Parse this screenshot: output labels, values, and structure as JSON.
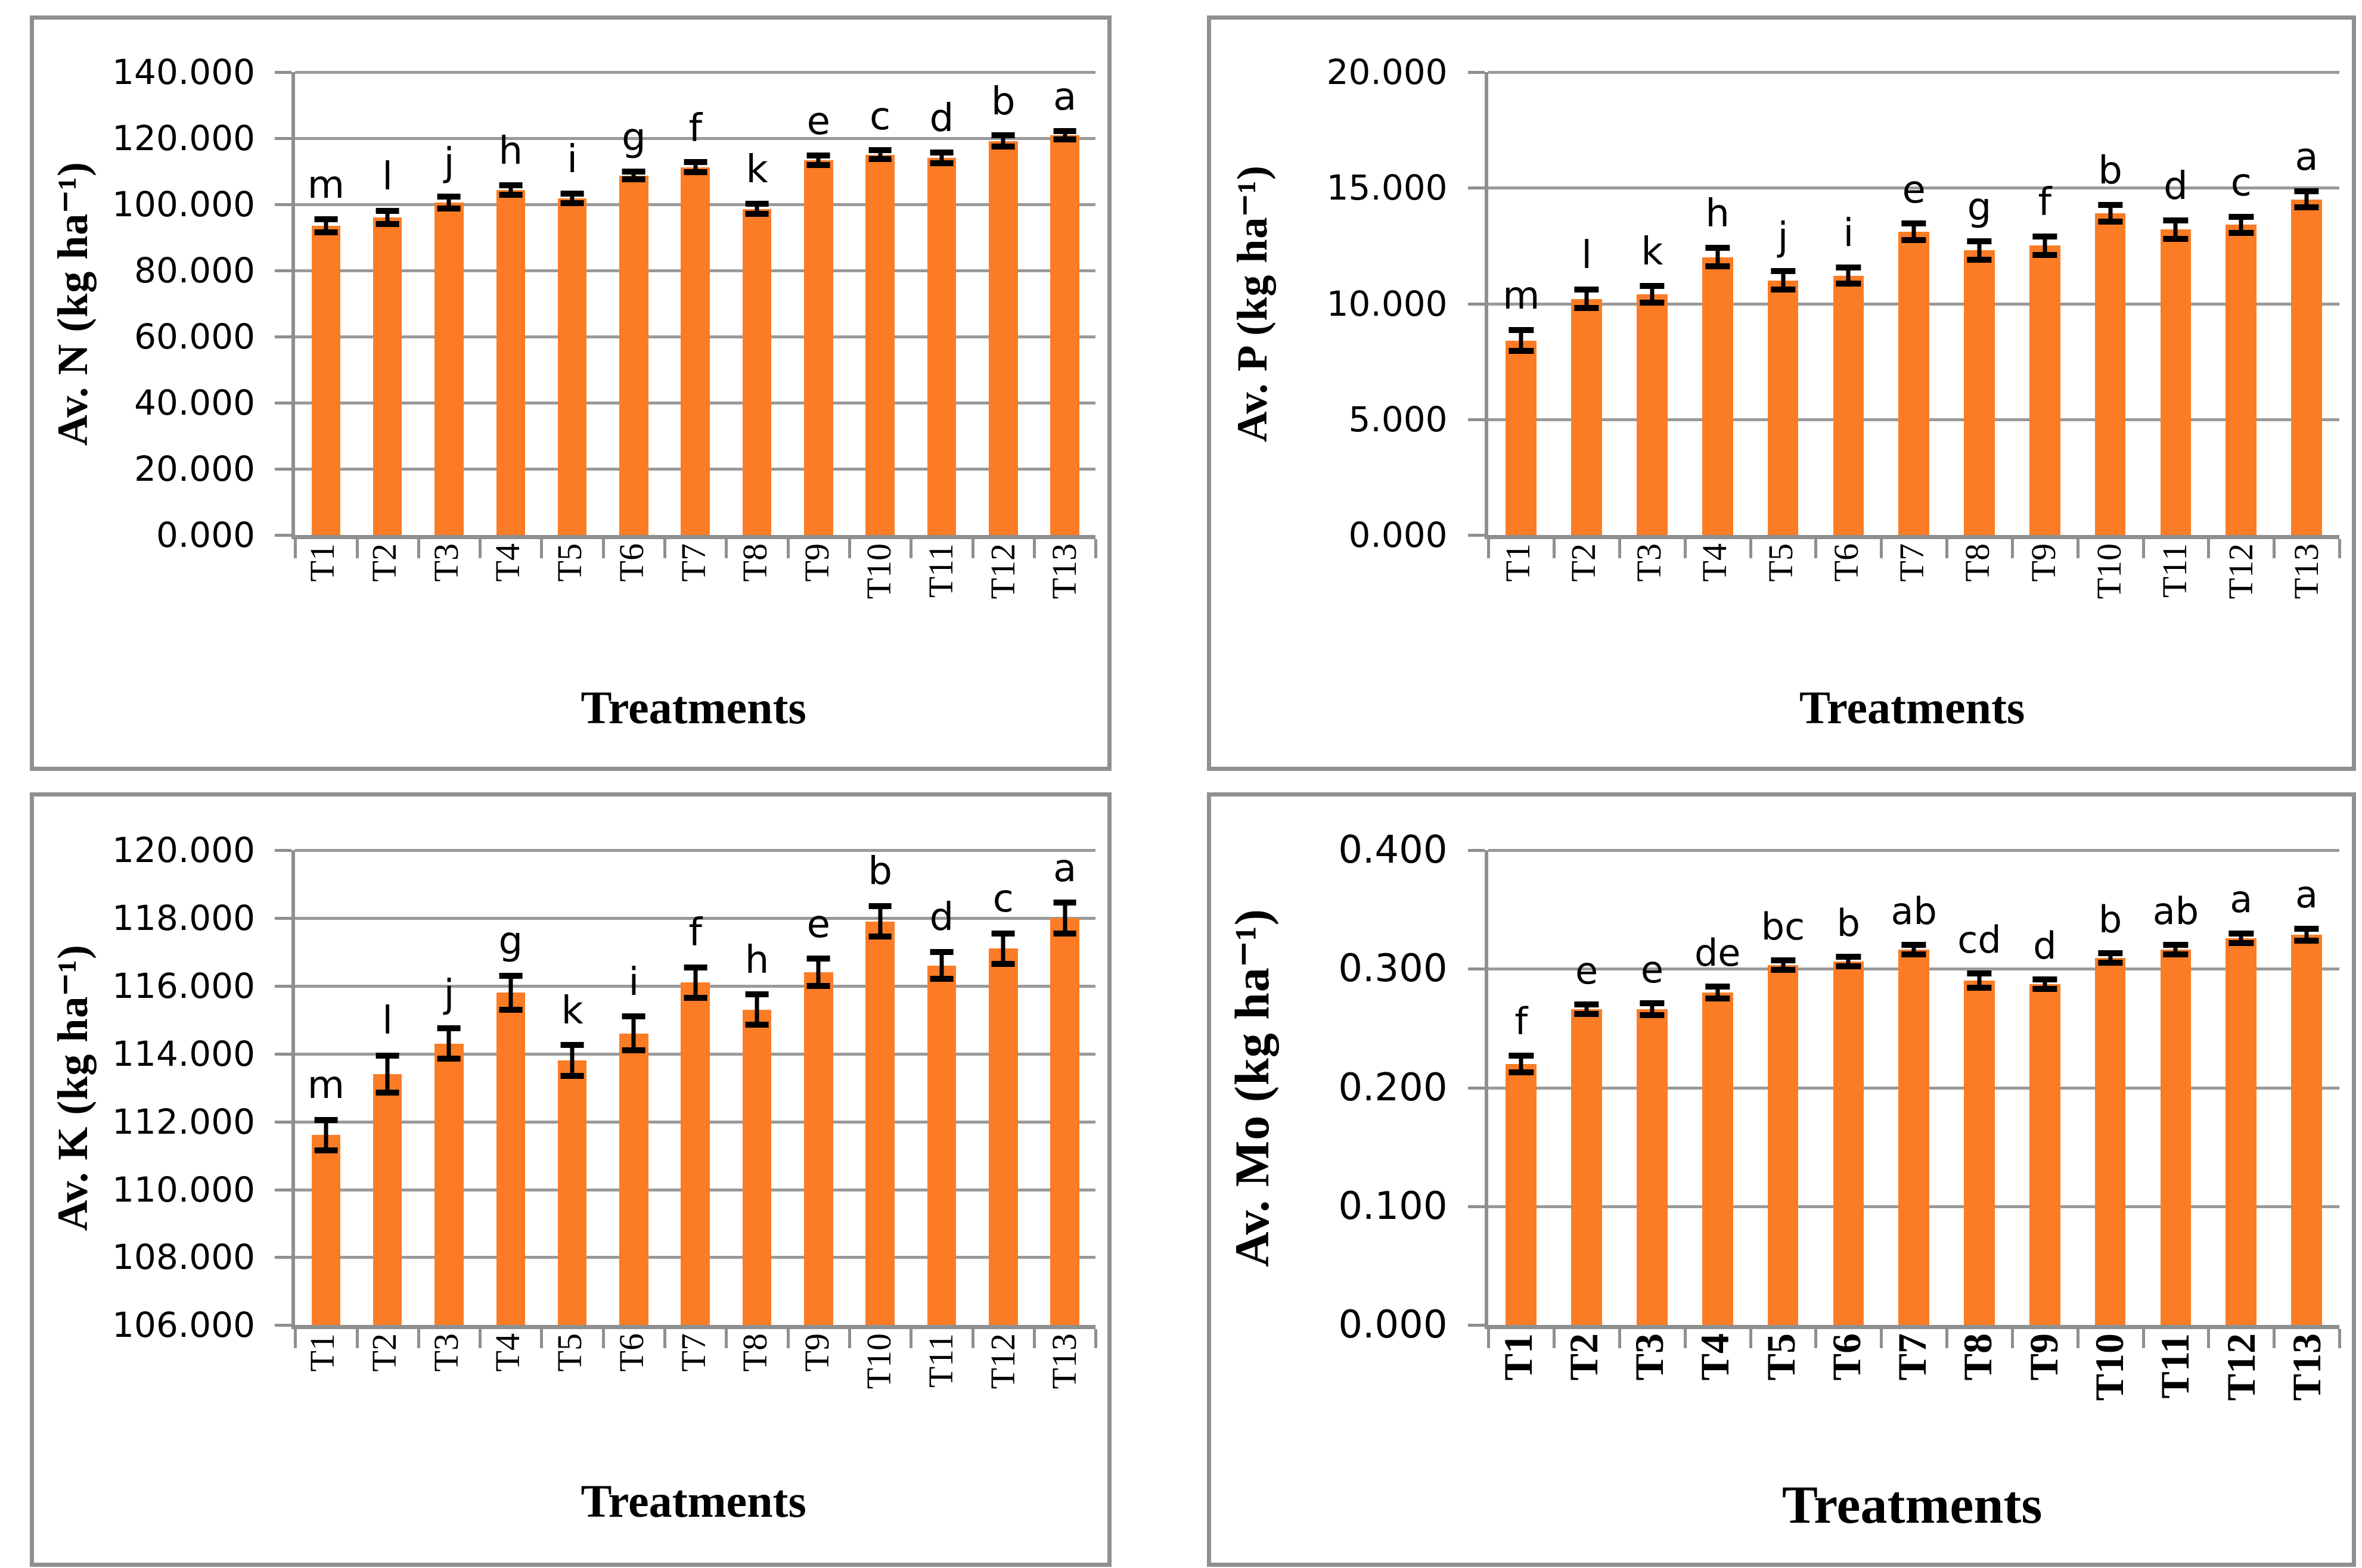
{
  "colors": {
    "bar": "#fb7c25",
    "gridline": "#9a9a9a",
    "axis": "#8f8f8f",
    "panel_border": "#909090",
    "error_bar": "#000000",
    "text": "#000000"
  },
  "chart_data": [
    {
      "type": "bar",
      "y_title": "Av. N (kg ha⁻¹)",
      "x_title": "Treatments",
      "ylim": [
        0,
        140
      ],
      "y_step": 20,
      "tick_decimals": 3,
      "grid": true,
      "legend": "none",
      "categories": [
        "T1",
        "T2",
        "T3",
        "T4",
        "T5",
        "T6",
        "T7",
        "T8",
        "T9",
        "T10",
        "T11",
        "T12",
        "T13"
      ],
      "values": [
        93.5,
        96.0,
        100.5,
        104.3,
        101.8,
        108.7,
        111.2,
        98.6,
        113.3,
        115.0,
        114.0,
        119.1,
        120.9
      ],
      "errors": [
        2.0,
        2.0,
        1.8,
        1.5,
        1.5,
        1.2,
        1.5,
        1.5,
        1.5,
        1.3,
        1.6,
        1.7,
        1.3
      ],
      "letters": [
        "m",
        "l",
        "j",
        "h",
        "i",
        "g",
        "f",
        "k",
        "e",
        "c",
        "d",
        "b",
        "a"
      ]
    },
    {
      "type": "bar",
      "y_title": "Av. P (kg ha⁻¹)",
      "x_title": "Treatments",
      "ylim": [
        0,
        20
      ],
      "y_step": 5,
      "tick_decimals": 3,
      "grid": true,
      "legend": "none",
      "categories": [
        "T1",
        "T2",
        "T3",
        "T4",
        "T5",
        "T6",
        "T7",
        "T8",
        "T9",
        "T10",
        "T11",
        "T12",
        "T13"
      ],
      "values": [
        8.4,
        10.2,
        10.4,
        12.0,
        11.0,
        11.2,
        13.1,
        12.3,
        12.5,
        13.9,
        13.2,
        13.4,
        14.5
      ],
      "errors": [
        0.45,
        0.4,
        0.35,
        0.4,
        0.4,
        0.35,
        0.35,
        0.4,
        0.4,
        0.35,
        0.4,
        0.35,
        0.35
      ],
      "letters": [
        "m",
        "l",
        "k",
        "h",
        "j",
        "i",
        "e",
        "g",
        "f",
        "b",
        "d",
        "c",
        "a"
      ]
    },
    {
      "type": "bar",
      "y_title": "Av. K (kg ha⁻¹)",
      "x_title": "Treatments",
      "ylim": [
        106,
        120
      ],
      "y_step": 2,
      "tick_decimals": 3,
      "grid": true,
      "legend": "none",
      "categories": [
        "T1",
        "T2",
        "T3",
        "T4",
        "T5",
        "T6",
        "T7",
        "T8",
        "T9",
        "T10",
        "T11",
        "T12",
        "T13"
      ],
      "values": [
        111.6,
        113.4,
        114.3,
        115.8,
        113.8,
        114.6,
        116.1,
        115.3,
        116.4,
        117.9,
        116.6,
        117.1,
        118.0
      ],
      "errors": [
        0.45,
        0.55,
        0.45,
        0.5,
        0.45,
        0.5,
        0.45,
        0.45,
        0.4,
        0.45,
        0.4,
        0.45,
        0.45
      ],
      "letters": [
        "m",
        "l",
        "j",
        "g",
        "k",
        "i",
        "f",
        "h",
        "e",
        "b",
        "d",
        "c",
        "a"
      ]
    },
    {
      "type": "bar",
      "y_title": "Av. Mo (kg ha⁻¹)",
      "x_title": "Treatments",
      "ylim": [
        0,
        0.4
      ],
      "y_step": 0.1,
      "tick_decimals": 3,
      "grid": true,
      "legend": "none",
      "categories": [
        "T1",
        "T2",
        "T3",
        "T4",
        "T5",
        "T6",
        "T7",
        "T8",
        "T9",
        "T10",
        "T11",
        "T12",
        "T13"
      ],
      "values": [
        0.22,
        0.266,
        0.266,
        0.28,
        0.303,
        0.306,
        0.316,
        0.29,
        0.287,
        0.309,
        0.316,
        0.326,
        0.329
      ],
      "errors": [
        0.007,
        0.004,
        0.005,
        0.005,
        0.004,
        0.004,
        0.004,
        0.006,
        0.004,
        0.004,
        0.004,
        0.004,
        0.005
      ],
      "letters": [
        "f",
        "e",
        "e",
        "de",
        "bc",
        "b",
        "ab",
        "cd",
        "d",
        "b",
        "ab",
        "a",
        "a"
      ]
    }
  ]
}
